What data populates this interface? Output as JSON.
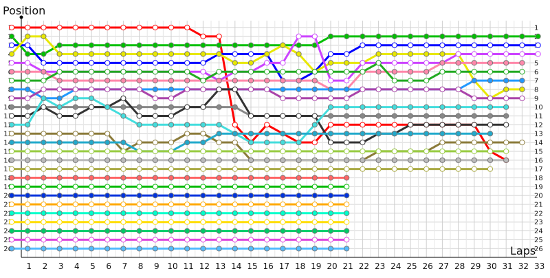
{
  "chart_data": {
    "type": "line",
    "title": "",
    "ylabel": "Position",
    "xlabel": "Laps",
    "x_ticks": [
      "1",
      "2",
      "3",
      "4",
      "5",
      "6",
      "7",
      "8",
      "9",
      "10",
      "11",
      "12",
      "13",
      "14",
      "15",
      "16",
      "17",
      "18",
      "19",
      "20",
      "21",
      "22",
      "23",
      "24",
      "25",
      "26",
      "27",
      "28",
      "29",
      "30",
      "31",
      "32",
      "33"
    ],
    "y_ticks": [
      "1",
      "2",
      "3",
      "4",
      "5",
      "6",
      "7",
      "8",
      "9",
      "10",
      "11",
      "12",
      "13",
      "14",
      "15",
      "16",
      "17",
      "18",
      "19",
      "20",
      "21",
      "22",
      "23",
      "24",
      "25",
      "26"
    ],
    "xlim": [
      0,
      34
    ],
    "ylim": [
      1,
      26
    ],
    "y_inverted": true,
    "grid": true,
    "legend": "none",
    "laps": [
      0,
      1,
      2,
      3,
      4,
      5,
      6,
      7,
      8,
      9,
      10,
      11,
      12,
      13,
      14,
      15,
      16,
      17,
      18,
      19,
      20,
      21,
      22,
      23,
      24,
      25,
      26,
      27,
      28,
      29,
      30,
      31,
      32,
      33
    ],
    "series": [
      {
        "color": "#ff0000",
        "values": [
          1,
          1,
          1,
          1,
          1,
          1,
          1,
          1,
          1,
          1,
          1,
          1,
          2,
          2,
          12,
          14,
          12,
          13,
          14,
          14,
          12,
          12,
          12,
          12,
          12,
          12,
          12,
          12,
          12,
          12,
          15,
          16,
          null,
          null
        ]
      },
      {
        "color": "#00c000",
        "values": [
          2,
          4,
          4,
          3,
          3,
          3,
          3,
          3,
          3,
          3,
          3,
          3,
          3,
          3,
          3,
          3,
          3,
          3,
          3,
          3,
          2,
          2,
          2,
          2,
          2,
          2,
          2,
          2,
          2,
          2,
          2,
          2,
          2,
          2
        ]
      },
      {
        "color": "#0000ff",
        "values": [
          3,
          3,
          5,
          5,
          5,
          5,
          5,
          5,
          5,
          5,
          5,
          5,
          5,
          4,
          4,
          4,
          4,
          7,
          7,
          6,
          4,
          4,
          3,
          3,
          3,
          3,
          3,
          3,
          3,
          3,
          3,
          3,
          3,
          3
        ]
      },
      {
        "color": "#e8e800",
        "values": [
          4,
          2,
          2,
          4,
          4,
          4,
          4,
          4,
          4,
          4,
          4,
          4,
          4,
          4,
          5,
          5,
          4,
          3,
          4,
          6,
          5,
          5,
          5,
          4,
          4,
          4,
          4,
          4,
          4,
          7,
          9,
          8,
          8,
          null
        ]
      },
      {
        "color": "#cc44ff",
        "values": [
          5,
          5,
          6,
          6,
          6,
          6,
          6,
          6,
          6,
          6,
          6,
          6,
          6,
          7,
          6,
          6,
          5,
          5,
          2,
          2,
          7,
          7,
          5,
          5,
          5,
          5,
          5,
          5,
          4,
          4,
          4,
          4,
          4,
          4
        ]
      },
      {
        "color": "#ff88aa",
        "values": [
          6,
          6,
          6,
          7,
          7,
          7,
          7,
          7,
          7,
          7,
          7,
          7,
          7,
          7,
          7,
          7,
          7,
          7,
          7,
          7,
          8,
          8,
          6,
          6,
          6,
          6,
          6,
          5,
          5,
          5,
          5,
          5,
          5,
          null
        ]
      },
      {
        "color": "#22aa22",
        "values": [
          7,
          7,
          7,
          6,
          6,
          6,
          6,
          6,
          6,
          6,
          6,
          6,
          7,
          6,
          6,
          6,
          6,
          6,
          6,
          6,
          6,
          6,
          6,
          5,
          7,
          7,
          7,
          6,
          6,
          6,
          6,
          6,
          6,
          null
        ]
      },
      {
        "color": "#2299ff",
        "values": [
          8,
          8,
          9,
          9,
          8,
          8,
          8,
          8,
          8,
          8,
          8,
          8,
          8,
          8,
          8,
          8,
          8,
          8,
          8,
          8,
          8,
          8,
          8,
          8,
          8,
          8,
          8,
          8,
          8,
          7,
          7,
          7,
          7,
          null
        ]
      },
      {
        "color": "#aa44aa",
        "values": [
          9,
          9,
          8,
          8,
          8,
          8,
          8,
          8,
          8,
          9,
          9,
          8,
          8,
          8,
          8,
          8,
          8,
          9,
          9,
          9,
          9,
          9,
          8,
          8,
          8,
          8,
          8,
          8,
          8,
          9,
          9,
          9,
          9,
          null
        ]
      },
      {
        "color": "#888888",
        "values": [
          10,
          10,
          10,
          10,
          10,
          10,
          10,
          10,
          10,
          10,
          10,
          10,
          10,
          10,
          10,
          11,
          11,
          11,
          11,
          11,
          11,
          11,
          11,
          11,
          11,
          11,
          11,
          11,
          11,
          11,
          11,
          11,
          null,
          null
        ]
      },
      {
        "color": "#333333",
        "values": [
          11,
          11,
          10,
          11,
          11,
          10,
          10,
          9,
          11,
          11,
          11,
          10,
          10,
          8,
          8,
          11,
          11,
          11,
          11,
          11,
          14,
          14,
          14,
          13,
          13,
          12,
          12,
          12,
          12,
          12,
          12,
          12,
          null,
          null
        ]
      },
      {
        "color": "#44dddd",
        "values": [
          12,
          12,
          9,
          10,
          9,
          9,
          10,
          11,
          12,
          12,
          12,
          12,
          12,
          12,
          13,
          14,
          14,
          14,
          14,
          12,
          10,
          10,
          10,
          10,
          10,
          10,
          10,
          10,
          10,
          10,
          10,
          10,
          null,
          null
        ]
      },
      {
        "color": "#8b7b3b",
        "values": [
          13,
          13,
          13,
          13,
          13,
          13,
          13,
          15,
          14,
          14,
          14,
          13,
          13,
          14,
          14,
          16,
          16,
          16,
          16,
          16,
          16,
          16,
          16,
          15,
          15,
          15,
          15,
          14,
          14,
          14,
          14,
          14,
          14,
          null
        ]
      },
      {
        "color": "#22aacc",
        "values": [
          14,
          14,
          14,
          14,
          14,
          14,
          14,
          14,
          15,
          15,
          15,
          14,
          14,
          13,
          13,
          13,
          13,
          13,
          13,
          13,
          13,
          13,
          13,
          13,
          13,
          13,
          13,
          13,
          13,
          13,
          13,
          null,
          null,
          null
        ]
      },
      {
        "color": "#99cc44",
        "values": [
          15,
          15,
          15,
          15,
          15,
          15,
          15,
          15,
          15,
          15,
          15,
          15,
          15,
          15,
          15,
          15,
          15,
          15,
          15,
          15,
          15,
          15,
          15,
          15,
          15,
          15,
          15,
          15,
          15,
          15,
          15,
          15,
          null,
          null
        ]
      },
      {
        "color": "#bbbbbb",
        "values": [
          16,
          16,
          16,
          16,
          16,
          16,
          16,
          16,
          16,
          16,
          16,
          16,
          16,
          16,
          16,
          16,
          16,
          16,
          16,
          16,
          16,
          16,
          16,
          16,
          16,
          16,
          16,
          16,
          16,
          16,
          16,
          16,
          null,
          null
        ]
      },
      {
        "color": "#aaaa44",
        "values": [
          17,
          17,
          17,
          17,
          17,
          17,
          17,
          17,
          17,
          17,
          17,
          17,
          17,
          17,
          17,
          17,
          17,
          17,
          17,
          17,
          17,
          17,
          17,
          17,
          17,
          17,
          17,
          17,
          17,
          17,
          17,
          null,
          null,
          null
        ]
      },
      {
        "color": "#ff6666",
        "values": [
          18,
          18,
          18,
          18,
          18,
          18,
          18,
          18,
          18,
          18,
          18,
          18,
          18,
          18,
          18,
          18,
          18,
          18,
          18,
          18,
          18,
          18,
          null,
          null,
          null,
          null,
          null,
          null,
          null,
          null,
          null,
          null,
          null,
          null
        ]
      },
      {
        "color": "#00bb00",
        "values": [
          19,
          19,
          19,
          19,
          19,
          19,
          19,
          19,
          19,
          19,
          19,
          19,
          19,
          19,
          19,
          19,
          19,
          19,
          19,
          19,
          19,
          19,
          null,
          null,
          null,
          null,
          null,
          null,
          null,
          null,
          null,
          null,
          null,
          null
        ]
      },
      {
        "color": "#0033dd",
        "values": [
          20,
          20,
          20,
          20,
          20,
          20,
          20,
          20,
          20,
          20,
          20,
          20,
          20,
          20,
          20,
          20,
          20,
          20,
          20,
          20,
          20,
          20,
          null,
          null,
          null,
          null,
          null,
          null,
          null,
          null,
          null,
          null,
          null,
          null
        ]
      },
      {
        "color": "#ffaa00",
        "values": [
          21,
          21,
          21,
          21,
          21,
          21,
          21,
          21,
          21,
          21,
          21,
          21,
          21,
          21,
          21,
          21,
          21,
          21,
          21,
          21,
          21,
          21,
          null,
          null,
          null,
          null,
          null,
          null,
          null,
          null,
          null,
          null,
          null,
          null
        ]
      },
      {
        "color": "#00ffcc",
        "values": [
          22,
          22,
          22,
          22,
          22,
          22,
          22,
          22,
          22,
          22,
          22,
          22,
          22,
          22,
          22,
          22,
          22,
          22,
          22,
          22,
          22,
          22,
          null,
          null,
          null,
          null,
          null,
          null,
          null,
          null,
          null,
          null,
          null,
          null
        ]
      },
      {
        "color": "#ffdd00",
        "values": [
          23,
          23,
          23,
          23,
          23,
          23,
          23,
          23,
          23,
          23,
          23,
          23,
          23,
          23,
          23,
          23,
          23,
          23,
          23,
          23,
          23,
          23,
          null,
          null,
          null,
          null,
          null,
          null,
          null,
          null,
          null,
          null,
          null,
          null
        ]
      },
      {
        "color": "#00cc66",
        "values": [
          24,
          24,
          24,
          24,
          24,
          24,
          24,
          24,
          24,
          24,
          24,
          24,
          24,
          24,
          24,
          24,
          24,
          24,
          24,
          24,
          24,
          24,
          null,
          null,
          null,
          null,
          null,
          null,
          null,
          null,
          null,
          null,
          null,
          null
        ]
      },
      {
        "color": "#dd44dd",
        "values": [
          25,
          25,
          25,
          25,
          25,
          25,
          25,
          25,
          25,
          25,
          25,
          25,
          25,
          25,
          25,
          25,
          25,
          25,
          25,
          25,
          25,
          25,
          null,
          null,
          null,
          null,
          null,
          null,
          null,
          null,
          null,
          null,
          null,
          null
        ]
      },
      {
        "color": "#55bbff",
        "values": [
          26,
          26,
          26,
          26,
          26,
          26,
          26,
          26,
          26,
          26,
          26,
          26,
          26,
          26,
          26,
          26,
          26,
          26,
          26,
          26,
          26,
          26,
          null,
          null,
          null,
          null,
          null,
          null,
          null,
          null,
          null,
          null,
          null,
          null
        ]
      }
    ]
  }
}
